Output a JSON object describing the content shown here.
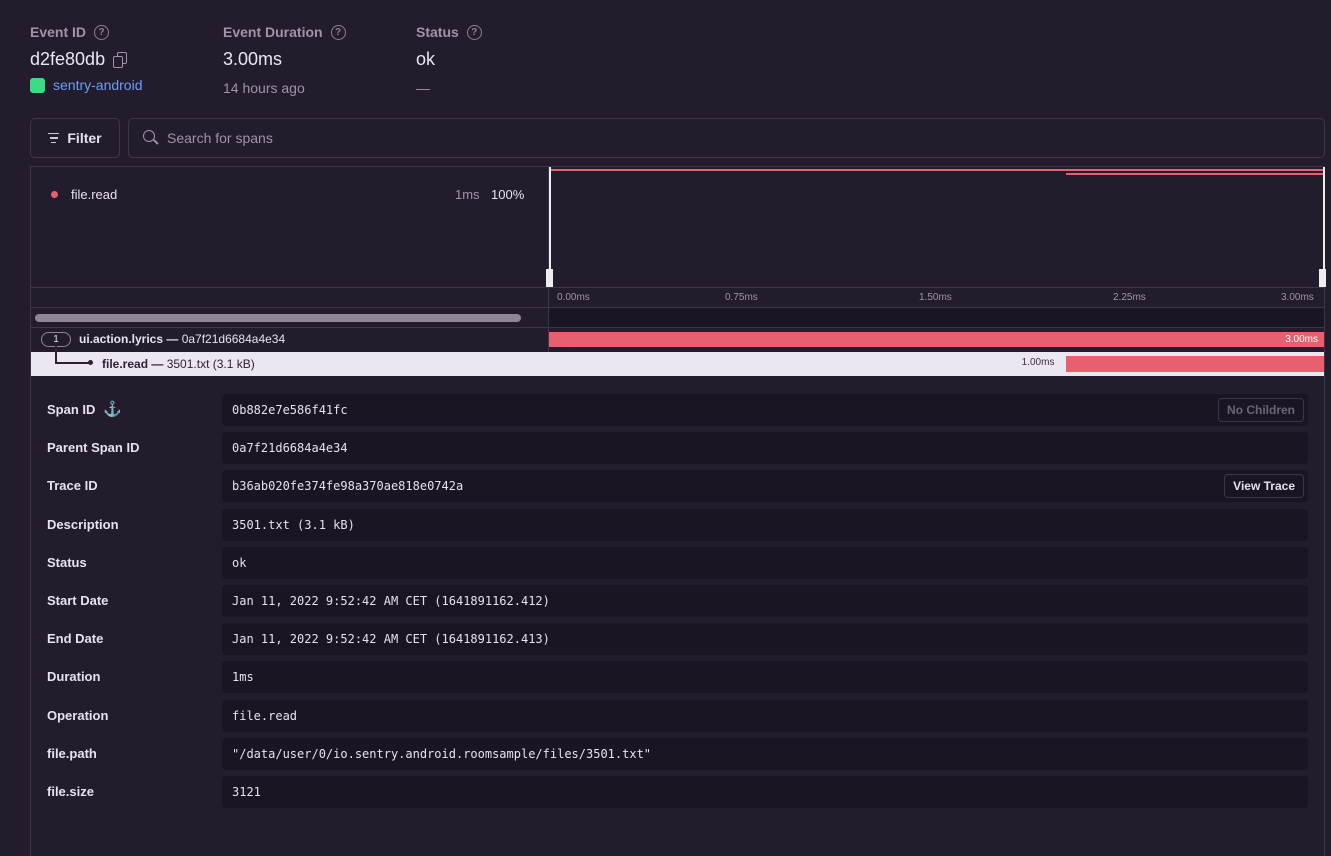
{
  "header": {
    "event_id": {
      "label": "Event ID",
      "value": "d2fe80db",
      "project": "sentry-android"
    },
    "duration": {
      "label": "Event Duration",
      "value": "3.00ms",
      "sub": "14 hours ago"
    },
    "status": {
      "label": "Status",
      "value": "ok",
      "sub": "—"
    }
  },
  "toolbar": {
    "filter_label": "Filter",
    "search_placeholder": "Search for spans"
  },
  "minimap": {
    "legend": {
      "op": "file.read",
      "duration": "1ms",
      "percent": "100%",
      "color": "#e8606f"
    },
    "ticks": [
      "0.00ms",
      "0.75ms",
      "1.50ms",
      "2.25ms",
      "3.00ms"
    ]
  },
  "spans": [
    {
      "count": "1",
      "op": "ui.action.lyrics",
      "sep": " — ",
      "desc": "0a7f21d6684a4e34",
      "duration": "3.00ms",
      "start": 0,
      "end": 3.0
    },
    {
      "op": "file.read",
      "sep": " — ",
      "desc": "3501.txt (3.1 kB)",
      "duration": "1.00ms",
      "start": 2.0,
      "end": 3.0
    }
  ],
  "details": [
    {
      "label": "Span ID",
      "value": "0b882e7e586f41fc",
      "button": "No Children"
    },
    {
      "label": "Parent Span ID",
      "value": "0a7f21d6684a4e34"
    },
    {
      "label": "Trace ID",
      "value": "b36ab020fe374fe98a370ae818e0742a",
      "button": "View Trace"
    },
    {
      "label": "Description",
      "value": "3501.txt (3.1 kB)"
    },
    {
      "label": "Status",
      "value": "ok"
    },
    {
      "label": "Start Date",
      "value": "Jan 11, 2022 9:52:42 AM CET (1641891162.412)"
    },
    {
      "label": "End Date",
      "value": "Jan 11, 2022 9:52:42 AM CET (1641891162.413)"
    },
    {
      "label": "Duration",
      "value": "1ms"
    },
    {
      "label": "Operation",
      "value": "file.read"
    },
    {
      "label": "file.path",
      "value": "\"/data/user/0/io.sentry.android.roomsample/files/3501.txt\""
    },
    {
      "label": "file.size",
      "value": "3121"
    }
  ],
  "colors": {
    "span": "#e8606f",
    "link": "#6c9ef8",
    "android": "#3ddc84"
  }
}
